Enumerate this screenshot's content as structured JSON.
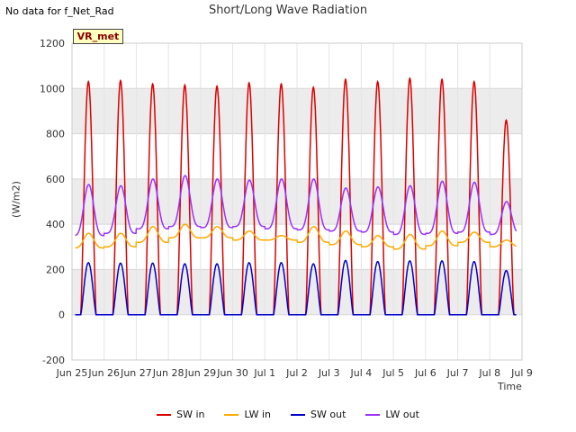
{
  "note": "No data for f_Net_Rad",
  "badge": "VR_met",
  "chart_data": {
    "type": "line",
    "title": "Short/Long Wave Radiation",
    "xlabel": "Time",
    "ylabel": "(W/m2)",
    "ylim": [
      -200,
      1200
    ],
    "yticks": [
      -200,
      0,
      200,
      400,
      600,
      800,
      1000,
      1200
    ],
    "xlim": [
      0,
      14
    ],
    "xtick_labels": [
      "Jun 25",
      "Jun 26",
      "Jun 27",
      "Jun 28",
      "Jun 29",
      "Jun 30",
      "Jul 1",
      "Jul 2",
      "Jul 3",
      "Jul 4",
      "Jul 5",
      "Jul 6",
      "Jul 7",
      "Jul 8",
      "Jul 9"
    ],
    "grid": true,
    "legend_position": "bottom",
    "series": [
      {
        "name": "SW in",
        "color": "#dd0000",
        "kind": "sw",
        "peak": [
          1030,
          1035,
          1020,
          1015,
          1010,
          1025,
          1020,
          1005,
          1040,
          1030,
          1045,
          1040,
          1030,
          860
        ],
        "night": 0
      },
      {
        "name": "LW in",
        "color": "#ffaa00",
        "kind": "lw",
        "peak": [
          360,
          360,
          390,
          400,
          390,
          370,
          350,
          390,
          370,
          350,
          355,
          370,
          365,
          330
        ],
        "night": [
          295,
          300,
          320,
          340,
          340,
          330,
          330,
          320,
          310,
          300,
          290,
          305,
          320,
          300
        ]
      },
      {
        "name": "SW out",
        "color": "#0000cc",
        "kind": "sw",
        "peak": [
          230,
          228,
          228,
          225,
          225,
          230,
          230,
          225,
          240,
          235,
          238,
          238,
          235,
          195
        ],
        "night": 0
      },
      {
        "name": "LW out",
        "color": "#9b30ff",
        "kind": "lw",
        "peak": [
          575,
          570,
          600,
          615,
          600,
          595,
          600,
          600,
          560,
          565,
          570,
          590,
          585,
          500
        ],
        "night": [
          350,
          360,
          380,
          390,
          385,
          390,
          380,
          375,
          370,
          365,
          355,
          360,
          365,
          355
        ]
      }
    ]
  },
  "legend": [
    "SW in",
    "LW in",
    "SW out",
    "LW out"
  ]
}
